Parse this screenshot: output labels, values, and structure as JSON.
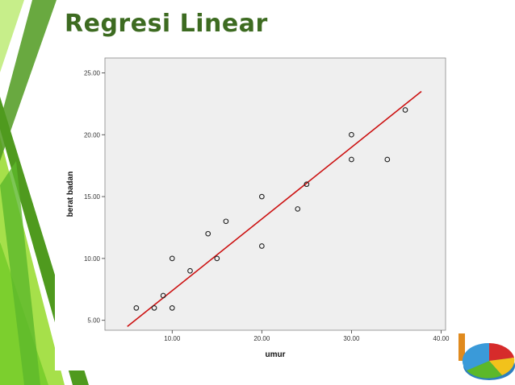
{
  "slide": {
    "title": "Regresi Linear",
    "accent_color": "#3d6b21",
    "deco_colors": [
      "#7ccf2e",
      "#a6e04a",
      "#4f9a1e",
      "#c7ee8a"
    ]
  },
  "chart_data": {
    "type": "scatter",
    "title": "",
    "xlabel": "umur",
    "ylabel": "berat badan",
    "xlim": [
      2.5,
      40.5
    ],
    "ylim": [
      4.2,
      26.2
    ],
    "xticks": [
      10,
      20,
      30,
      40
    ],
    "yticks": [
      5,
      10,
      15,
      20,
      25
    ],
    "xtick_labels": [
      "10.00",
      "20.00",
      "30.00",
      "40.00"
    ],
    "ytick_labels": [
      "5.00",
      "10.00",
      "15.00",
      "20.00",
      "25.00"
    ],
    "grid": false,
    "plot_background": "#efefef",
    "series": [
      {
        "marker": "open-circle",
        "x": [
          6,
          8,
          9,
          10,
          10,
          12,
          14,
          15,
          16,
          20,
          20,
          24,
          25,
          30,
          30,
          34,
          36
        ],
        "y": [
          6,
          6,
          7,
          6,
          10,
          9,
          12,
          10,
          13,
          11,
          15,
          14,
          16,
          18,
          20,
          18,
          22
        ]
      }
    ],
    "fit_line": {
      "color": "#cc1111",
      "x": [
        5.0,
        37.8
      ],
      "y": [
        4.5,
        23.5
      ]
    }
  }
}
